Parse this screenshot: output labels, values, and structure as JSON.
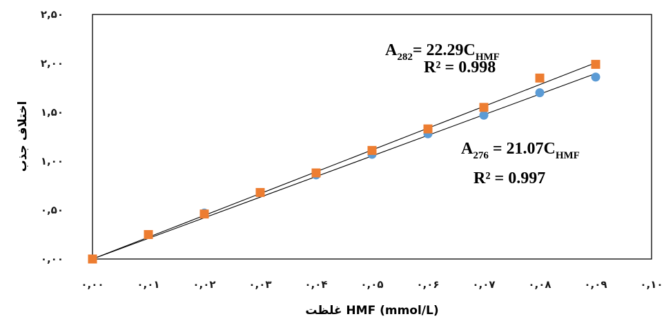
{
  "chart_data": {
    "type": "scatter",
    "xlabel": "غلظت  HMF (mmol/L)",
    "ylabel": "اختلاف جذب",
    "xlim": [
      0,
      0.1
    ],
    "ylim": [
      0,
      2.5
    ],
    "x_tick_labels": [
      "۰,۰۰",
      "۰,۰۱",
      "۰,۰۲",
      "۰,۰۳",
      "۰,۰۴",
      "۰,۰۵",
      "۰,۰۶",
      "۰,۰۷",
      "۰,۰۸",
      "۰,۰۹",
      "۰,۱۰"
    ],
    "y_tick_labels": [
      "۰,۰۰",
      "۰,۵۰",
      "۱,۰۰",
      "۱,۵۰",
      "۲,۰۰",
      "۲,۵۰"
    ],
    "x": [
      0.0,
      0.01,
      0.02,
      0.03,
      0.04,
      0.05,
      0.06,
      0.07,
      0.08,
      0.09
    ],
    "series": [
      {
        "marker": "circle",
        "color": "#5b9bd5",
        "values": [
          0.0,
          0.25,
          0.47,
          0.68,
          0.86,
          1.07,
          1.28,
          1.47,
          1.7,
          1.86
        ],
        "equation_main": "A",
        "equation_sub": "276",
        "equation_rest": " = 21.07C",
        "equation_sub2": "HMF",
        "r2": "R² = 0.997",
        "slope": 21.07
      },
      {
        "marker": "square",
        "color": "#ed7d31",
        "values": [
          0.0,
          0.25,
          0.46,
          0.68,
          0.88,
          1.11,
          1.33,
          1.55,
          1.85,
          1.99
        ],
        "equation_main": "A",
        "equation_sub": "282",
        "equation_rest": "= 22.29C",
        "equation_sub2": "HMF",
        "r2": "R² = 0.998",
        "slope": 22.29
      }
    ],
    "grid": false,
    "legend": "none"
  }
}
